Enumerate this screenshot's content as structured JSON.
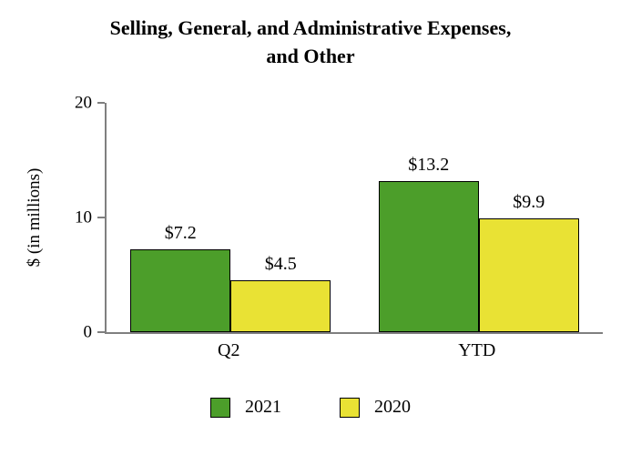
{
  "header": {
    "title": "Selling, General, and Administrative Expenses, and Other"
  },
  "chart_data": {
    "type": "bar",
    "title": "Selling, General, and Administrative Expenses, and Other",
    "categories": [
      "Q2",
      "YTD"
    ],
    "series": [
      {
        "name": "2021",
        "color": "#4c9e2a",
        "values": [
          7.2,
          13.2
        ],
        "labels": [
          "$7.2",
          "$13.2"
        ]
      },
      {
        "name": "2020",
        "color": "#e9e234",
        "values": [
          4.5,
          9.9
        ],
        "labels": [
          "$4.5",
          "$9.9"
        ]
      }
    ],
    "xlabel": "",
    "ylabel": "$ (in millions)",
    "ylim": [
      0,
      20
    ],
    "yticks": [
      0,
      10,
      20
    ],
    "grid": false,
    "legend_position": "bottom"
  }
}
